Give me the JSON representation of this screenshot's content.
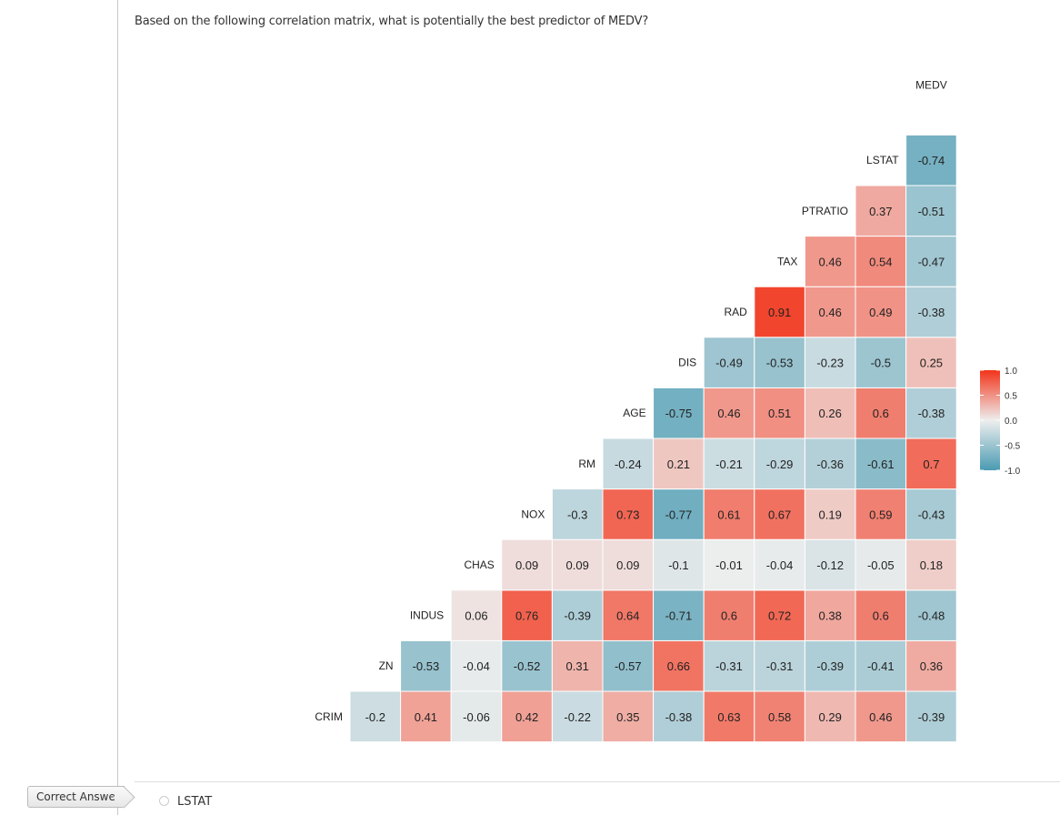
{
  "question": "Based on the following correlation matrix, what is potentially the best predictor of MEDV?",
  "correct_answer_label": "Correct Answer",
  "answer_option": "LSTAT",
  "chart_data": {
    "type": "heatmap",
    "variables": [
      "CRIM",
      "ZN",
      "INDUS",
      "CHAS",
      "NOX",
      "RM",
      "AGE",
      "DIS",
      "RAD",
      "TAX",
      "PTRATIO",
      "LSTAT",
      "MEDV"
    ],
    "rows": [
      {
        "label": "CRIM",
        "values": [
          -0.2,
          0.41,
          -0.06,
          0.42,
          -0.22,
          0.35,
          -0.38,
          0.63,
          0.58,
          0.29,
          0.46,
          -0.39
        ]
      },
      {
        "label": "ZN",
        "values": [
          -0.53,
          -0.04,
          -0.52,
          0.31,
          -0.57,
          0.66,
          -0.31,
          -0.31,
          -0.39,
          -0.41,
          0.36
        ]
      },
      {
        "label": "INDUS",
        "values": [
          0.06,
          0.76,
          -0.39,
          0.64,
          -0.71,
          0.6,
          0.72,
          0.38,
          0.6,
          -0.48
        ]
      },
      {
        "label": "CHAS",
        "values": [
          0.09,
          0.09,
          0.09,
          -0.1,
          -0.01,
          -0.04,
          -0.12,
          -0.05,
          0.18
        ]
      },
      {
        "label": "NOX",
        "values": [
          -0.3,
          0.73,
          -0.77,
          0.61,
          0.67,
          0.19,
          0.59,
          -0.43
        ]
      },
      {
        "label": "RM",
        "values": [
          -0.24,
          0.21,
          -0.21,
          -0.29,
          -0.36,
          -0.61,
          0.7
        ]
      },
      {
        "label": "AGE",
        "values": [
          -0.75,
          0.46,
          0.51,
          0.26,
          0.6,
          -0.38
        ]
      },
      {
        "label": "DIS",
        "values": [
          -0.49,
          -0.53,
          -0.23,
          -0.5,
          0.25
        ]
      },
      {
        "label": "RAD",
        "values": [
          0.91,
          0.46,
          0.49,
          -0.38
        ]
      },
      {
        "label": "TAX",
        "values": [
          0.46,
          0.54,
          -0.47
        ]
      },
      {
        "label": "PTRATIO",
        "values": [
          0.37,
          -0.51
        ]
      },
      {
        "label": "LSTAT",
        "values": [
          -0.74
        ]
      },
      {
        "label": "MEDV",
        "values": []
      }
    ],
    "color_scale": {
      "low": "#4A9BB2",
      "mid": "#EEEEEE",
      "high": "#F2341A",
      "range": [
        -1,
        1
      ]
    },
    "legend": {
      "ticks": [
        "1.0",
        "0.5",
        "0.0",
        "-0.5",
        "-1.0"
      ],
      "position": "right"
    }
  }
}
